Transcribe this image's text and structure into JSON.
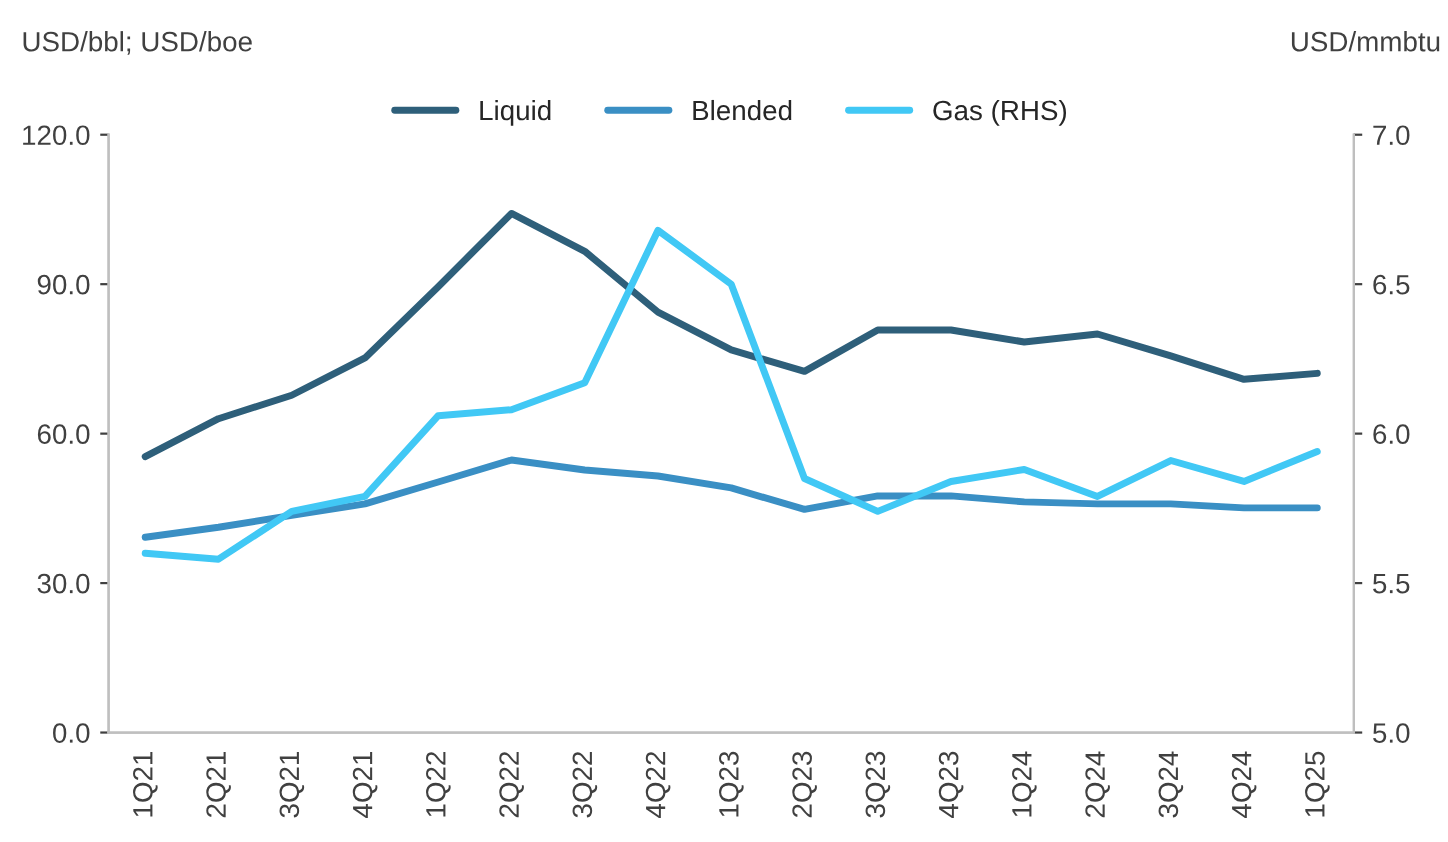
{
  "chart_data": {
    "type": "line",
    "ylabel": "USD/bbl; USD/boe",
    "y2label": "USD/mmbtu",
    "categories": [
      "1Q21",
      "2Q21",
      "3Q21",
      "4Q21",
      "1Q22",
      "2Q22",
      "3Q22",
      "4Q22",
      "1Q23",
      "2Q23",
      "3Q23",
      "4Q23",
      "1Q24",
      "2Q24",
      "3Q24",
      "4Q24",
      "1Q25"
    ],
    "series": [
      {
        "name": "Liquid",
        "color": "#2e5f7a",
        "values": [
          55.4,
          63.0,
          67.7,
          75.2,
          89.5,
          104.2,
          96.6,
          84.4,
          76.8,
          72.5,
          80.8,
          80.8,
          78.4,
          80.0,
          75.6,
          70.9,
          72.1
        ]
      },
      {
        "name": "Blended",
        "color": "#3a8fc4",
        "values": [
          39.2,
          41.2,
          43.6,
          45.9,
          50.3,
          54.7,
          52.7,
          51.5,
          49.1,
          44.8,
          47.5,
          47.5,
          46.3,
          45.9,
          45.9,
          45.1,
          45.1
        ]
      },
      {
        "name": "Gas (RHS)",
        "color": "#41c8f5",
        "axis": "y2",
        "values": [
          5.6,
          5.58,
          5.74,
          5.79,
          6.06,
          6.08,
          6.17,
          6.68,
          6.5,
          5.85,
          5.74,
          5.84,
          5.88,
          5.79,
          5.91,
          5.84,
          5.94
        ]
      }
    ],
    "ylim": [
      0,
      120
    ],
    "yticks": [
      {
        "value": 0,
        "label": "0.0"
      },
      {
        "value": 30,
        "label": "30.0"
      },
      {
        "value": 60,
        "label": "60.0"
      },
      {
        "value": 90,
        "label": "90.0"
      },
      {
        "value": 120,
        "label": "120.0"
      }
    ],
    "y2lim": [
      5,
      7
    ],
    "y2ticks": [
      {
        "value": 5,
        "label": "5.0"
      },
      {
        "value": 5.5,
        "label": "5.5"
      },
      {
        "value": 6,
        "label": "6.0"
      },
      {
        "value": 6.5,
        "label": "6.5"
      },
      {
        "value": 7,
        "label": "7.0"
      }
    ],
    "legend": "top",
    "grid": false,
    "marker": "none",
    "line_style": "solid"
  }
}
